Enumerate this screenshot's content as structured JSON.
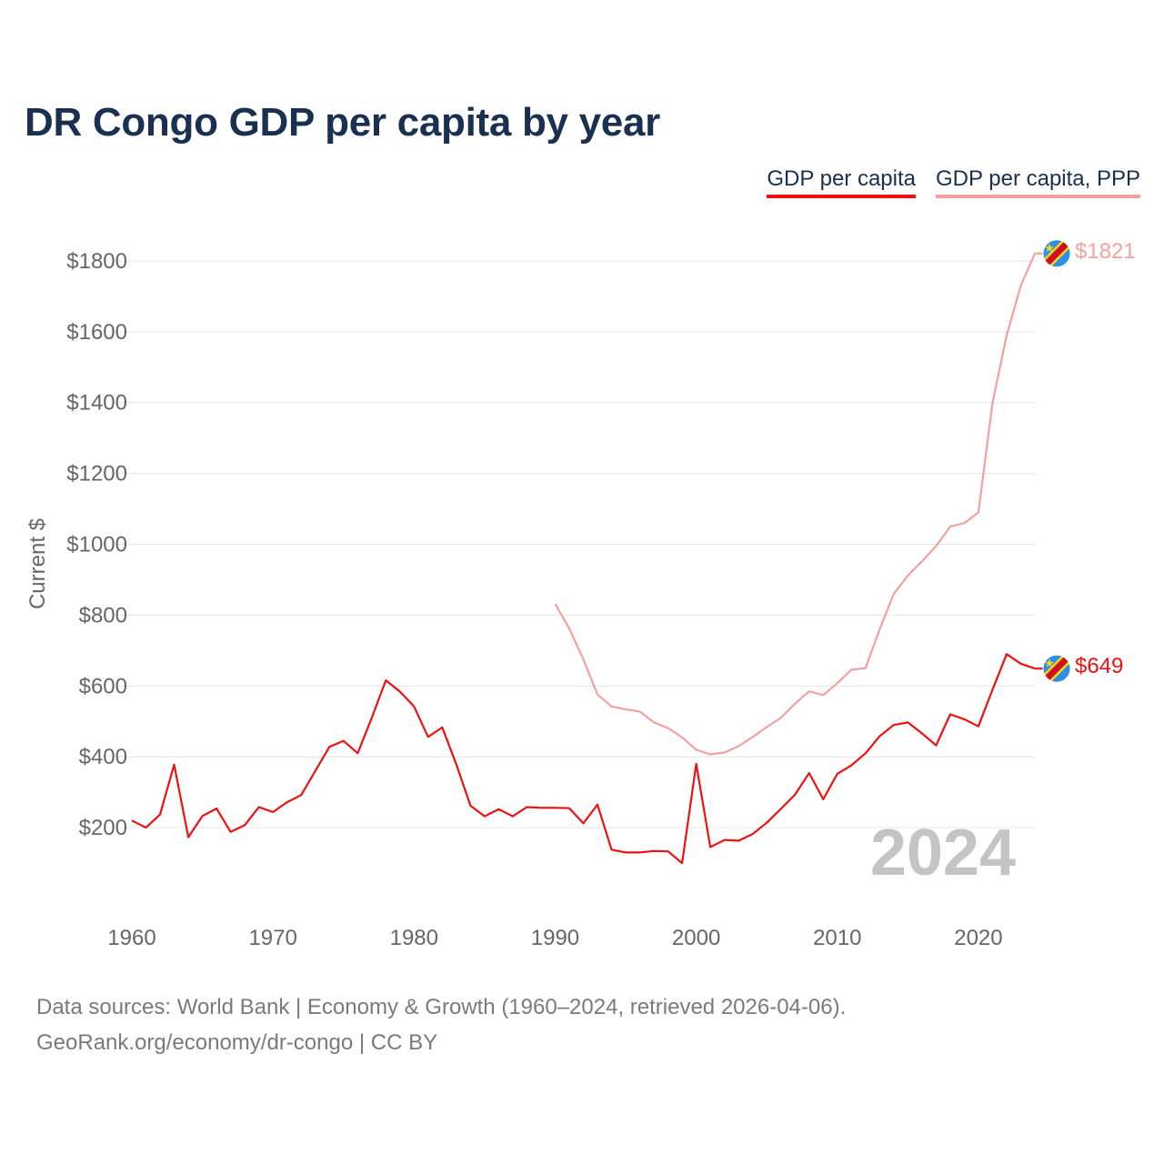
{
  "title": "DR Congo GDP per capita by year",
  "legend": [
    {
      "label": "GDP per capita",
      "color": "#ee1111"
    },
    {
      "label": "GDP per capita, PPP",
      "color": "#f5a0a0"
    }
  ],
  "flag_icon": "dr-congo-flag-icon",
  "footer": {
    "line1": "Data sources: World Bank | Economy & Growth (1960–2024, retrieved 2026-04-06).",
    "line2": "GeoRank.org/economy/dr-congo | CC BY"
  },
  "chart_data": {
    "type": "line",
    "title": "DR Congo GDP per capita by year",
    "xlabel": "",
    "ylabel": "Current $",
    "xlim": [
      1960,
      2024
    ],
    "ylim": [
      0,
      1900
    ],
    "x_ticks": [
      1960,
      1970,
      1980,
      1990,
      2000,
      2010,
      2020
    ],
    "y_ticks": [
      200,
      400,
      600,
      800,
      1000,
      1200,
      1400,
      1600,
      1800
    ],
    "y_tick_labels": [
      "$200",
      "$400",
      "$600",
      "$800",
      "$1000",
      "$1200",
      "$1400",
      "$1600",
      "$1800"
    ],
    "grid": true,
    "watermark_year": "2024",
    "series": [
      {
        "name": "GDP per capita",
        "color": "#ee1111",
        "end_label": "$649",
        "x": [
          1960,
          1961,
          1962,
          1963,
          1964,
          1965,
          1966,
          1967,
          1968,
          1969,
          1970,
          1971,
          1972,
          1973,
          1974,
          1975,
          1976,
          1977,
          1978,
          1979,
          1980,
          1981,
          1982,
          1983,
          1984,
          1985,
          1986,
          1987,
          1988,
          1989,
          1990,
          1991,
          1992,
          1993,
          1994,
          1995,
          1996,
          1997,
          1998,
          1999,
          2000,
          2001,
          2002,
          2003,
          2004,
          2005,
          2006,
          2007,
          2008,
          2009,
          2010,
          2011,
          2012,
          2013,
          2014,
          2015,
          2016,
          2017,
          2018,
          2019,
          2020,
          2021,
          2022,
          2023,
          2024
        ],
        "values": [
          220,
          200,
          237,
          378,
          173,
          233,
          254,
          188,
          207,
          258,
          244,
          272,
          292,
          360,
          428,
          445,
          410,
          510,
          616,
          584,
          542,
          456,
          483,
          378,
          262,
          232,
          252,
          232,
          258,
          256,
          256,
          255,
          212,
          265,
          138,
          130,
          130,
          134,
          133,
          100,
          380,
          145,
          165,
          163,
          182,
          214,
          253,
          293,
          354,
          280,
          352,
          376,
          410,
          458,
          490,
          497,
          466,
          432,
          520,
          506,
          486,
          590,
          690,
          663,
          649
        ]
      },
      {
        "name": "GDP per capita, PPP",
        "color": "#f5a0a0",
        "end_label": "$1821",
        "x": [
          1990,
          1991,
          1992,
          1993,
          1994,
          1995,
          1996,
          1997,
          1998,
          1999,
          2000,
          2001,
          2002,
          2003,
          2004,
          2005,
          2006,
          2007,
          2008,
          2009,
          2010,
          2011,
          2012,
          2013,
          2014,
          2015,
          2016,
          2017,
          2018,
          2019,
          2020,
          2021,
          2022,
          2023,
          2024
        ],
        "values": [
          832,
          762,
          675,
          576,
          542,
          534,
          528,
          497,
          481,
          455,
          420,
          407,
          412,
          430,
          456,
          484,
          510,
          550,
          585,
          574,
          608,
          646,
          650,
          760,
          860,
          912,
          952,
          995,
          1050,
          1060,
          1090,
          1400,
          1590,
          1730,
          1821
        ]
      }
    ]
  }
}
